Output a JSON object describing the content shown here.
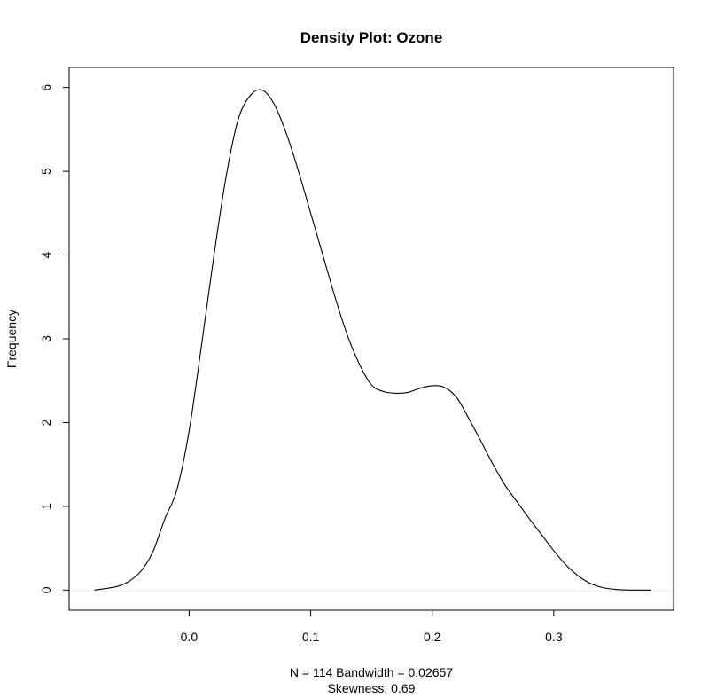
{
  "chart_data": {
    "type": "line",
    "title": "Density Plot: Ozone",
    "xlabel_line1": "N = 114   Bandwidth = 0.02657",
    "xlabel_line2": "Skewness: 0.69",
    "ylabel": "Frequency",
    "xlim": [
      -0.0987,
      0.3985
    ],
    "ylim": [
      -0.24,
      6.24
    ],
    "x_ticks": [
      0.0,
      0.1,
      0.2,
      0.3
    ],
    "x_tick_labels": [
      "0.0",
      "0.1",
      "0.2",
      "0.3"
    ],
    "y_ticks": [
      0,
      1,
      2,
      3,
      4,
      5,
      6
    ],
    "y_tick_labels": [
      "0",
      "1",
      "2",
      "3",
      "4",
      "5",
      "6"
    ],
    "grid": false,
    "baseline": 0,
    "series": [
      {
        "x": [
          -0.078,
          -0.06,
          -0.05,
          -0.04,
          -0.03,
          -0.02,
          -0.01,
          0.0,
          0.01,
          0.02,
          0.03,
          0.04,
          0.05,
          0.06,
          0.07,
          0.08,
          0.09,
          0.1,
          0.11,
          0.12,
          0.13,
          0.14,
          0.15,
          0.16,
          0.17,
          0.18,
          0.19,
          0.2,
          0.21,
          0.22,
          0.23,
          0.24,
          0.25,
          0.26,
          0.27,
          0.28,
          0.29,
          0.3,
          0.31,
          0.32,
          0.33,
          0.34,
          0.35,
          0.36,
          0.38
        ],
        "y": [
          0.0,
          0.04,
          0.1,
          0.22,
          0.45,
          0.85,
          1.2,
          1.9,
          2.9,
          3.95,
          4.9,
          5.6,
          5.9,
          5.97,
          5.8,
          5.45,
          5.0,
          4.5,
          4.0,
          3.5,
          3.05,
          2.7,
          2.45,
          2.37,
          2.35,
          2.36,
          2.41,
          2.44,
          2.42,
          2.3,
          2.05,
          1.78,
          1.5,
          1.25,
          1.05,
          0.85,
          0.66,
          0.47,
          0.3,
          0.17,
          0.08,
          0.03,
          0.01,
          0.002,
          0.0
        ]
      }
    ]
  }
}
